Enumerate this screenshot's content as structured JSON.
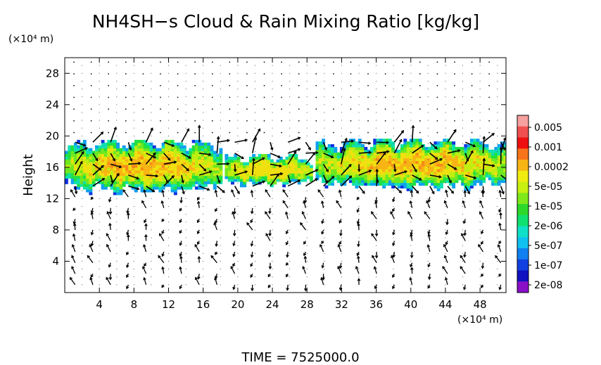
{
  "chart_data": {
    "type": "heatmap",
    "title": "NH4SH−s Cloud & Rain Mixing Ratio [kg/kg]",
    "ylabel": "Height",
    "y_unit_label": "(×10⁴ m)",
    "x_unit_label": "(×10⁴ m)",
    "xlim": [
      0,
      51
    ],
    "ylim": [
      0,
      30
    ],
    "x_ticks": [
      4,
      8,
      12,
      16,
      20,
      24,
      28,
      32,
      36,
      40,
      44,
      48
    ],
    "y_ticks": [
      4,
      8,
      12,
      16,
      20,
      24,
      28
    ],
    "grid": "dotted",
    "footer": "TIME = 7525000.0",
    "colorbar": {
      "position": "right",
      "labels": [
        "0.005",
        "0.001",
        "0.0002",
        "5e-05",
        "1e-05",
        "2e-06",
        "5e-07",
        "1e-07",
        "2e-08"
      ],
      "colors": [
        "#f7a0a0",
        "#f05050",
        "#ee1010",
        "#f8741a",
        "#f8b414",
        "#f0ec10",
        "#c8f010",
        "#7ee81a",
        "#2ed82a",
        "#10e070",
        "#10e0c8",
        "#10c0f0",
        "#1080f0",
        "#1040e0",
        "#1010c0",
        "#8a10c8"
      ]
    },
    "cloud_regions": [
      {
        "x": [
          0,
          18
        ],
        "y": [
          12.5,
          19.5
        ],
        "peak": 0.0002
      },
      {
        "x": [
          18.5,
          28.5
        ],
        "y": [
          13.5,
          17.5
        ],
        "peak": 5e-05
      },
      {
        "x": [
          29,
          51
        ],
        "y": [
          13,
          19.5
        ],
        "peak": 0.0002
      }
    ]
  }
}
